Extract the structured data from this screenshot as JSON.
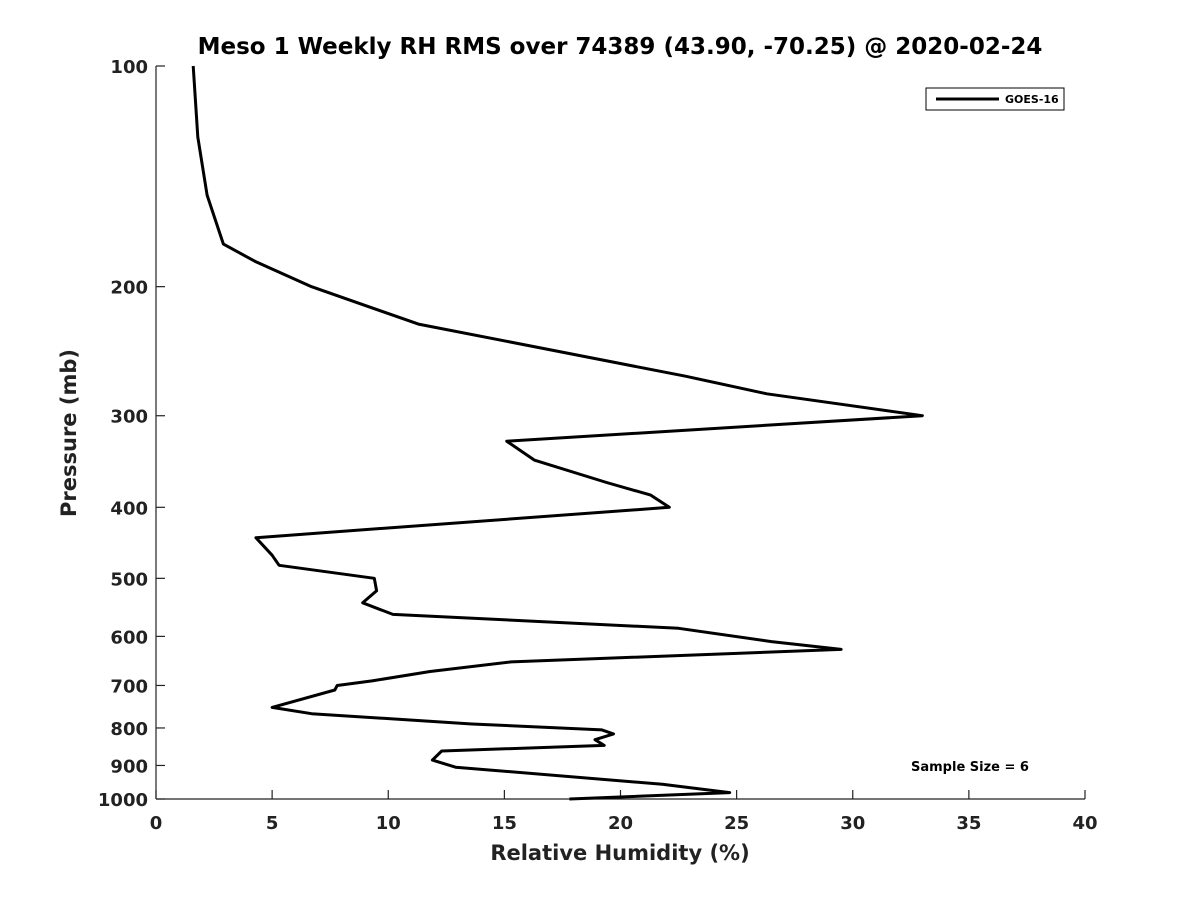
{
  "chart_data": {
    "type": "line",
    "title": "Meso 1 Weekly RH RMS over 74389 (43.90, -70.25) @ 2020-02-24",
    "xlabel": "Relative Humidity (%)",
    "ylabel": "Pressure (mb)",
    "xlim": [
      0,
      40
    ],
    "ylim": [
      100,
      1000
    ],
    "y_scale": "log",
    "y_inverted": true,
    "grid": false,
    "x_ticks": [
      0,
      5,
      10,
      15,
      20,
      25,
      30,
      35,
      40
    ],
    "x_tick_labels": [
      "0",
      "5",
      "10",
      "15",
      "20",
      "25",
      "30",
      "35",
      "40"
    ],
    "y_ticks": [
      100,
      200,
      300,
      400,
      500,
      600,
      700,
      800,
      900,
      1000
    ],
    "y_tick_labels": [
      "100",
      "200",
      "300",
      "400",
      "500",
      "600",
      "700",
      "800",
      "900",
      "1000"
    ],
    "legend": {
      "placement": "top-right",
      "entries": [
        "GOES-16"
      ]
    },
    "annotations": [
      "Sample Size = 6"
    ],
    "series": [
      {
        "name": "GOES-16",
        "color": "#000000",
        "x": [
          1.6,
          1.8,
          2.2,
          2.9,
          4.3,
          6.7,
          11.3,
          22.8,
          26.3,
          33.0,
          15.1,
          16.3,
          19.4,
          21.3,
          22.1,
          4.3,
          5.0,
          5.3,
          9.4,
          9.5,
          8.9,
          10.2,
          22.5,
          26.5,
          29.5,
          15.3,
          11.8,
          9.3,
          7.8,
          7.7,
          5.0,
          6.7,
          13.6,
          19.2,
          19.7,
          18.9,
          19.3,
          12.3,
          11.9,
          12.9,
          21.8,
          24.7,
          17.8
        ],
        "y": [
          100,
          125,
          150,
          175,
          185,
          200,
          225,
          265,
          280,
          300,
          325,
          345,
          370,
          385,
          400,
          440,
          465,
          480,
          500,
          520,
          540,
          560,
          585,
          610,
          625,
          650,
          670,
          690,
          700,
          710,
          750,
          765,
          790,
          805,
          815,
          830,
          845,
          860,
          885,
          905,
          955,
          980,
          1000
        ]
      }
    ]
  }
}
